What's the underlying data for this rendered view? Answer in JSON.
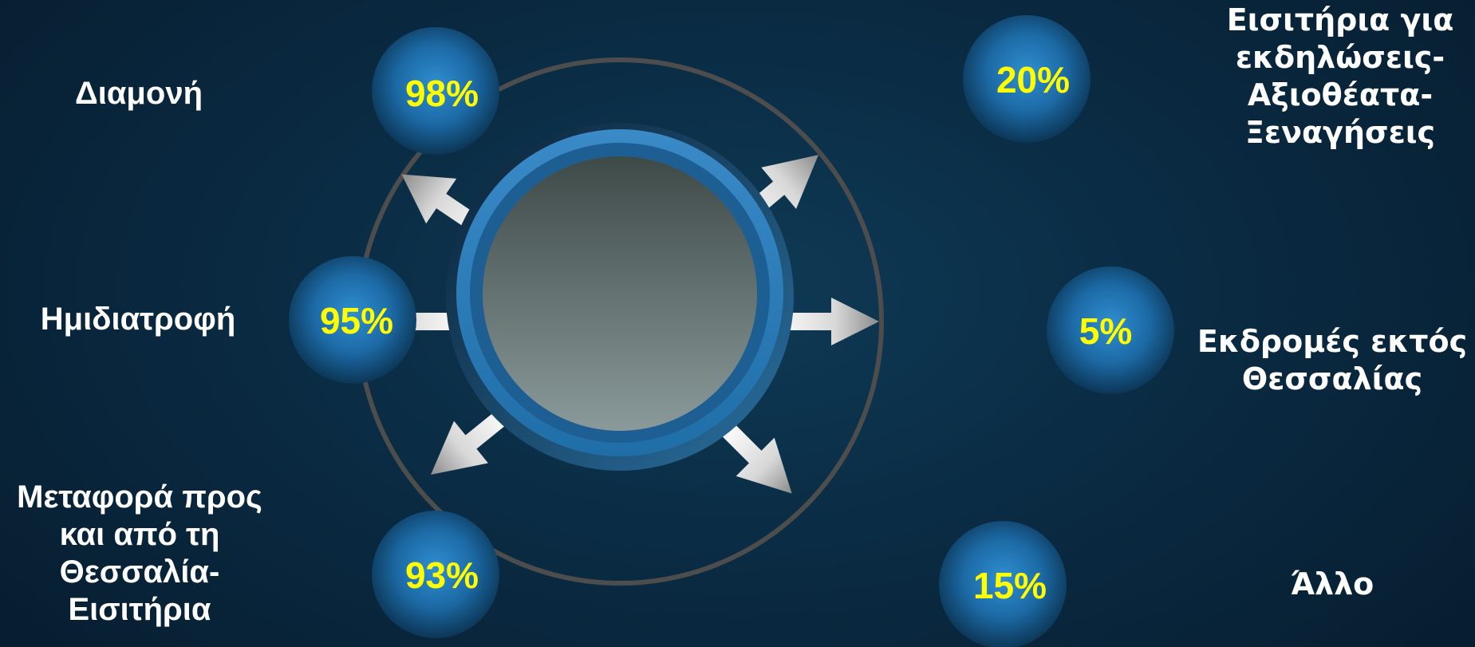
{
  "colors": {
    "background": "#0a2c44",
    "percent_text": "#ffff00",
    "label_text": "#ffffff",
    "ring": "#4a4a4a",
    "hub_ring": "#2a7ab8"
  },
  "items": [
    {
      "id": "accommodation",
      "label": "Διαμονή",
      "percent": "98%"
    },
    {
      "id": "half-board",
      "label": "Ημιδιατροφή",
      "percent": "95%"
    },
    {
      "id": "transport",
      "label_lines": [
        "Μεταφορά προς",
        "και από τη",
        "Θεσσαλία-",
        "Εισιτήρια"
      ],
      "percent": "93%"
    },
    {
      "id": "tickets",
      "label_lines": [
        "Εισιτήρια για",
        "εκδηλώσεις-",
        "Αξιοθέατα-",
        "Ξεναγήσεις"
      ],
      "percent": "20%"
    },
    {
      "id": "excursions",
      "label_lines": [
        "Εκδρομές εκτός",
        "Θεσσαλίας"
      ],
      "percent": "5%"
    },
    {
      "id": "other",
      "label": "Άλλο",
      "percent": "15%"
    }
  ]
}
